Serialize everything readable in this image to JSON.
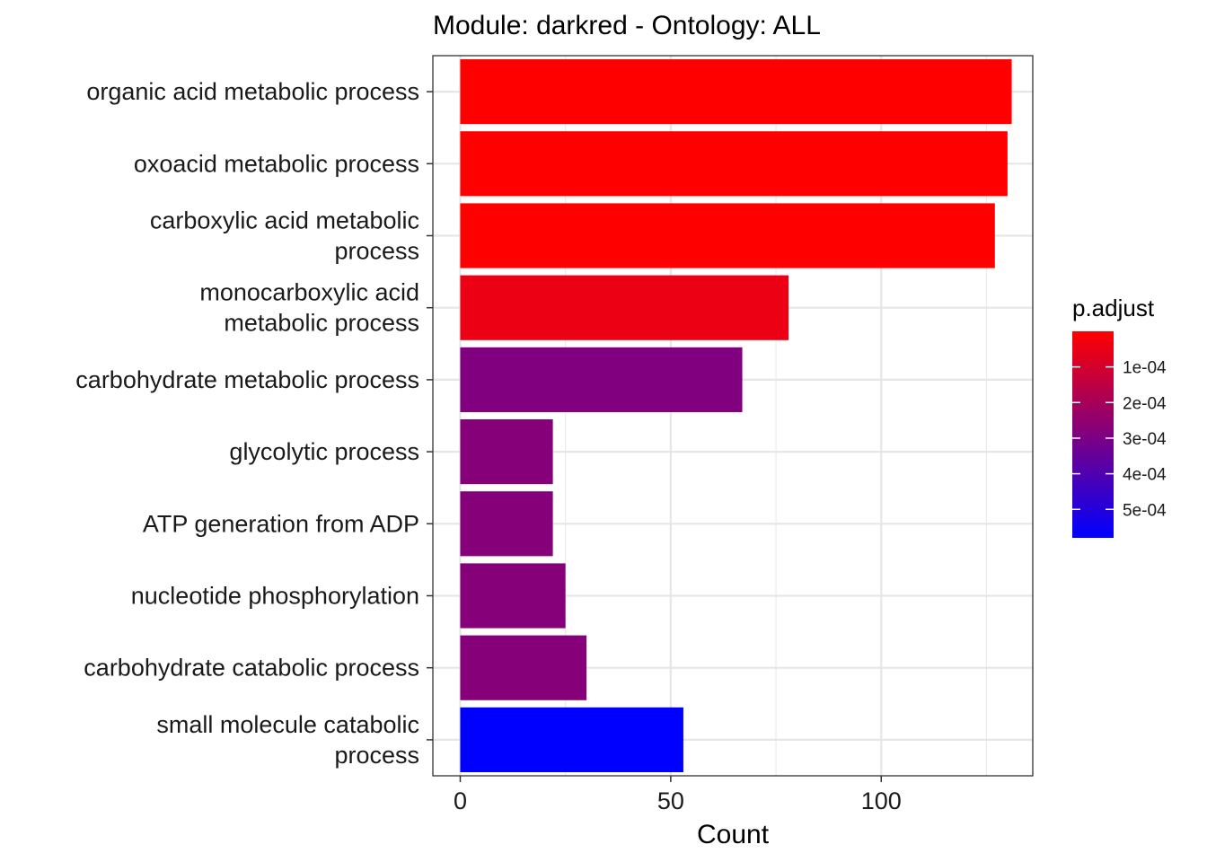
{
  "chart_data": {
    "type": "bar",
    "orientation": "horizontal",
    "title": "Module: darkred - Ontology: ALL",
    "xlabel": "Count",
    "ylabel": "",
    "xlim": [
      -6.5,
      136
    ],
    "x_ticks": [
      0,
      50,
      100
    ],
    "grid": true,
    "categories": [
      [
        "organic acid metabolic process"
      ],
      [
        "oxoacid metabolic process"
      ],
      [
        "carboxylic acid metabolic",
        "process"
      ],
      [
        "monocarboxylic acid",
        "metabolic process"
      ],
      [
        "carbohydrate metabolic process"
      ],
      [
        "glycolytic process"
      ],
      [
        "ATP generation from ADP"
      ],
      [
        "nucleotide phosphorylation"
      ],
      [
        "carbohydrate catabolic process"
      ],
      [
        "small molecule catabolic",
        "process"
      ]
    ],
    "values": [
      131,
      130,
      127,
      78,
      67,
      22,
      22,
      25,
      30,
      53
    ],
    "p_adjust": [
      1e-07,
      2e-07,
      3e-07,
      4.5e-05,
      0.00029,
      0.000275,
      0.000275,
      0.000275,
      0.000275,
      0.00058
    ],
    "legend": {
      "title": "p.adjust",
      "position": "right",
      "ticks": [
        "1e-04",
        "2e-04",
        "3e-04",
        "4e-04",
        "5e-04"
      ],
      "tick_values": [
        0.0001,
        0.0002,
        0.0003,
        0.0004,
        0.0005
      ],
      "range": [
        1e-07,
        0.00058
      ],
      "low_color": "#ff0000",
      "high_color": "#0000ff"
    }
  }
}
